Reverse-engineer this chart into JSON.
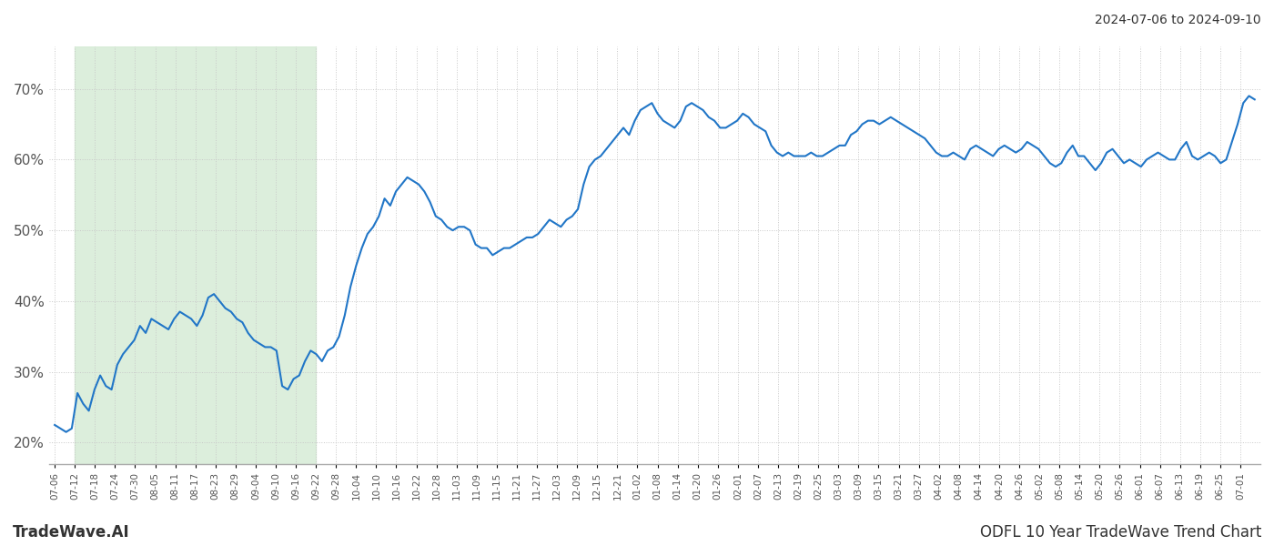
{
  "title_right": "2024-07-06 to 2024-09-10",
  "footer_left": "TradeWave.AI",
  "footer_right": "ODFL 10 Year TradeWave Trend Chart",
  "line_color": "#2176c7",
  "line_width": 1.5,
  "shade_color": "#d6ecd6",
  "shade_alpha": 0.85,
  "ylim": [
    17,
    76
  ],
  "yticks": [
    20,
    30,
    40,
    50,
    60,
    70
  ],
  "background_color": "#ffffff",
  "grid_color": "#c8c8c8",
  "grid_linestyle": ":",
  "shade_xstart_idx": 1,
  "shade_xend_idx": 13,
  "x_labels": [
    "07-06",
    "07-12",
    "07-18",
    "07-24",
    "07-30",
    "08-05",
    "08-11",
    "08-17",
    "08-23",
    "08-29",
    "09-04",
    "09-10",
    "09-16",
    "09-22",
    "09-28",
    "10-04",
    "10-10",
    "10-16",
    "10-22",
    "10-28",
    "11-03",
    "11-09",
    "11-15",
    "11-21",
    "11-27",
    "12-03",
    "12-09",
    "12-15",
    "12-21",
    "01-02",
    "01-08",
    "01-14",
    "01-20",
    "01-26",
    "02-01",
    "02-07",
    "02-13",
    "02-19",
    "02-25",
    "03-03",
    "03-09",
    "03-15",
    "03-21",
    "03-27",
    "04-02",
    "04-08",
    "04-14",
    "04-20",
    "04-26",
    "05-02",
    "05-08",
    "05-14",
    "05-20",
    "05-26",
    "06-01",
    "06-07",
    "06-13",
    "06-19",
    "06-25",
    "07-01"
  ],
  "y_values": [
    22.5,
    22.0,
    21.5,
    22.0,
    27.0,
    25.5,
    24.5,
    27.5,
    29.5,
    28.0,
    27.5,
    31.0,
    32.5,
    33.5,
    34.5,
    36.5,
    35.5,
    37.5,
    37.0,
    36.5,
    36.0,
    37.5,
    38.5,
    38.0,
    37.5,
    36.5,
    38.0,
    40.5,
    41.0,
    40.0,
    39.0,
    38.5,
    37.5,
    37.0,
    35.5,
    34.5,
    34.0,
    33.5,
    33.5,
    33.0,
    28.0,
    27.5,
    29.0,
    29.5,
    31.5,
    33.0,
    32.5,
    31.5,
    33.0,
    33.5,
    35.0,
    38.0,
    42.0,
    45.0,
    47.5,
    49.5,
    50.5,
    52.0,
    54.5,
    53.5,
    55.5,
    56.5,
    57.5,
    57.0,
    56.5,
    55.5,
    54.0,
    52.0,
    51.5,
    50.5,
    50.0,
    50.5,
    50.5,
    50.0,
    48.0,
    47.5,
    47.5,
    46.5,
    47.0,
    47.5,
    47.5,
    48.0,
    48.5,
    49.0,
    49.0,
    49.5,
    50.5,
    51.5,
    51.0,
    50.5,
    51.5,
    52.0,
    53.0,
    56.5,
    59.0,
    60.0,
    60.5,
    61.5,
    62.5,
    63.5,
    64.5,
    63.5,
    65.5,
    67.0,
    67.5,
    68.0,
    66.5,
    65.5,
    65.0,
    64.5,
    65.5,
    67.5,
    68.0,
    67.5,
    67.0,
    66.0,
    65.5,
    64.5,
    64.5,
    65.0,
    65.5,
    66.5,
    66.0,
    65.0,
    64.5,
    64.0,
    62.0,
    61.0,
    60.5,
    61.0,
    60.5,
    60.5,
    60.5,
    61.0,
    60.5,
    60.5,
    61.0,
    61.5,
    62.0,
    62.0,
    63.5,
    64.0,
    65.0,
    65.5,
    65.5,
    65.0,
    65.5,
    66.0,
    65.5,
    65.0,
    64.5,
    64.0,
    63.5,
    63.0,
    62.0,
    61.0,
    60.5,
    60.5,
    61.0,
    60.5,
    60.0,
    61.5,
    62.0,
    61.5,
    61.0,
    60.5,
    61.5,
    62.0,
    61.5,
    61.0,
    61.5,
    62.5,
    62.0,
    61.5,
    60.5,
    59.5,
    59.0,
    59.5,
    61.0,
    62.0,
    60.5,
    60.5,
    59.5,
    58.5,
    59.5,
    61.0,
    61.5,
    60.5,
    59.5,
    60.0,
    59.5,
    59.0,
    60.0,
    60.5,
    61.0,
    60.5,
    60.0,
    60.0,
    61.5,
    62.5,
    60.5,
    60.0,
    60.5,
    61.0,
    60.5,
    59.5,
    60.0,
    62.5,
    65.0,
    68.0,
    69.0,
    68.5
  ]
}
